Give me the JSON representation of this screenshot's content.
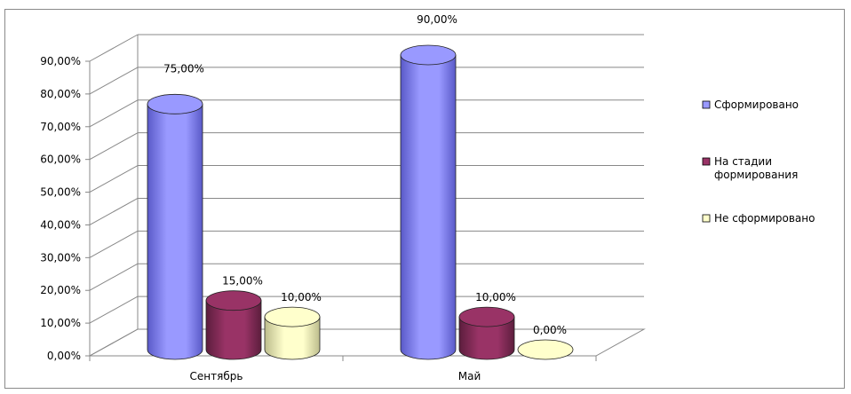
{
  "chart_data": {
    "type": "bar",
    "categories": [
      "Сентябрь",
      "Май"
    ],
    "series": [
      {
        "name": "Сформировано",
        "values": [
          75,
          90
        ],
        "labels": [
          "75,00%",
          "90,00%"
        ],
        "color": "#9999ff",
        "dark": "#5a5ac8"
      },
      {
        "name": "На стадии формирования",
        "values": [
          15,
          10
        ],
        "labels": [
          "15,00%",
          "10,00%"
        ],
        "color": "#993366",
        "dark": "#5c1e3d"
      },
      {
        "name": "Не сформировано",
        "values": [
          10,
          0
        ],
        "labels": [
          "10,00%",
          "0,00%"
        ],
        "color": "#ffffcc",
        "dark": "#bcbc8c"
      }
    ],
    "yticks": [
      "0,00%",
      "10,00%",
      "20,00%",
      "30,00%",
      "40,00%",
      "50,00%",
      "60,00%",
      "70,00%",
      "80,00%",
      "90,00%"
    ],
    "ylim": [
      0,
      90
    ],
    "legend_position": "right",
    "grid": true,
    "bar_shape": "cylinder-3d"
  }
}
